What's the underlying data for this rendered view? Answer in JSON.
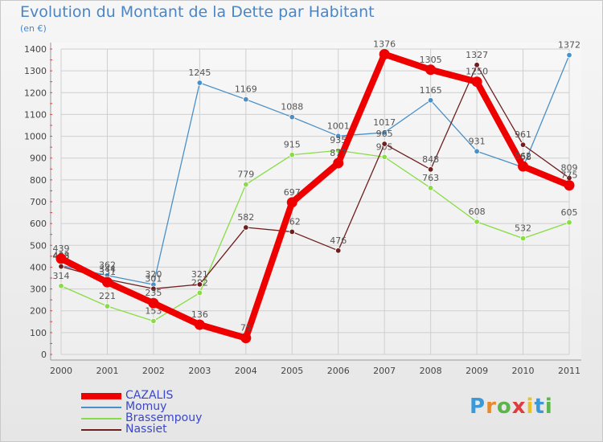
{
  "header": {
    "title": "Evolution du Montant de la Dette par Habitant",
    "unit": "(en €)"
  },
  "logo": {
    "text": "Proxiti"
  },
  "chart_data": {
    "type": "line",
    "title": "Evolution du Montant de la Dette par Habitant",
    "ylabel": "(en €)",
    "xlabel": "",
    "categories": [
      "2000",
      "2001",
      "2002",
      "2003",
      "2004",
      "2005",
      "2006",
      "2007",
      "2008",
      "2009",
      "2010",
      "2011"
    ],
    "ylim": [
      0,
      1400
    ],
    "yticks": [
      0,
      100,
      200,
      300,
      400,
      500,
      600,
      700,
      800,
      900,
      1000,
      1100,
      1200,
      1300,
      1400
    ],
    "grid": true,
    "legend_position": "bottom-left",
    "series": [
      {
        "name": "CAZALIS",
        "color": "#ee0000",
        "values": [
          439,
          331,
          235,
          136,
          75,
          697,
          877,
          1376,
          1305,
          1250,
          862,
          775
        ]
      },
      {
        "name": "Momuy",
        "color": "#4a90c8",
        "values": [
          408,
          362,
          320,
          1245,
          1169,
          1088,
          1001,
          1017,
          1165,
          931,
          858,
          1372
        ]
      },
      {
        "name": "Brassempouy",
        "color": "#88dd44",
        "values": [
          314,
          221,
          153,
          282,
          779,
          915,
          935,
          905,
          763,
          608,
          532,
          605
        ]
      },
      {
        "name": "Nassiet",
        "color": "#6e1f1f",
        "values": [
          403,
          344,
          301,
          321,
          582,
          562,
          476,
          965,
          848,
          1327,
          961,
          809
        ]
      }
    ]
  }
}
